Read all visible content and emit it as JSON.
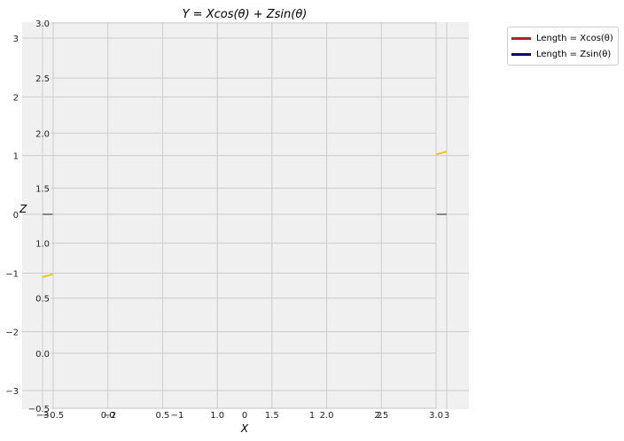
{
  "chart_data": {
    "type": "line",
    "title": "Y = Xcos(θ) + Zsin(θ)",
    "xlabel": "X",
    "ylabel": "Z",
    "grid": true,
    "legend_placement": "outside-top-right",
    "colors": {
      "background": "#f0f0f0",
      "grid": "#cbcbcb",
      "yellow_line": "#f5c518",
      "gray_marker": "#888888",
      "legend_xcos": "#b22222",
      "legend_zsin": "#000080"
    },
    "outer_axes": {
      "x_ticks": [
        "−3",
        "−2",
        "−1",
        "0",
        "1",
        "2",
        "3"
      ],
      "y_ticks": [
        "3",
        "2",
        "1",
        "0",
        "−1",
        "−2",
        "−3"
      ],
      "xlim": [
        -3.5,
        3.5
      ],
      "ylim": [
        -3.5,
        3.5
      ]
    },
    "inner_axes": {
      "x_ticks": [
        "−0.5",
        "0.0",
        "0.5",
        "1.0",
        "1.5",
        "2.0",
        "2.5",
        "3.0"
      ],
      "y_ticks": [
        "3.0",
        "2.5",
        "2.0",
        "1.5",
        "1.0",
        "0.5",
        "0.0",
        "−0.5"
      ],
      "xlim": [
        -0.5,
        3.0
      ],
      "ylim": [
        -0.5,
        3.0
      ]
    },
    "series": [
      {
        "name": "Length = Xcos(θ)",
        "color": "#b22222",
        "x": [],
        "y": []
      },
      {
        "name": "Length = Zsin(θ)",
        "color": "#000080",
        "x": [],
        "y": []
      },
      {
        "color": "#f5c518",
        "x": [
          -3.0,
          -2.85
        ],
        "y": [
          -1.07,
          -1.02
        ]
      },
      {
        "color": "#f5c518",
        "x": [
          2.85,
          3.0
        ],
        "y": [
          1.02,
          1.07
        ]
      },
      {
        "color": "#888888",
        "x": [
          -3.0,
          -2.85
        ],
        "y": [
          0.0,
          0.0
        ]
      },
      {
        "color": "#888888",
        "x": [
          2.85,
          3.0
        ],
        "y": [
          0.0,
          0.0
        ]
      }
    ]
  }
}
